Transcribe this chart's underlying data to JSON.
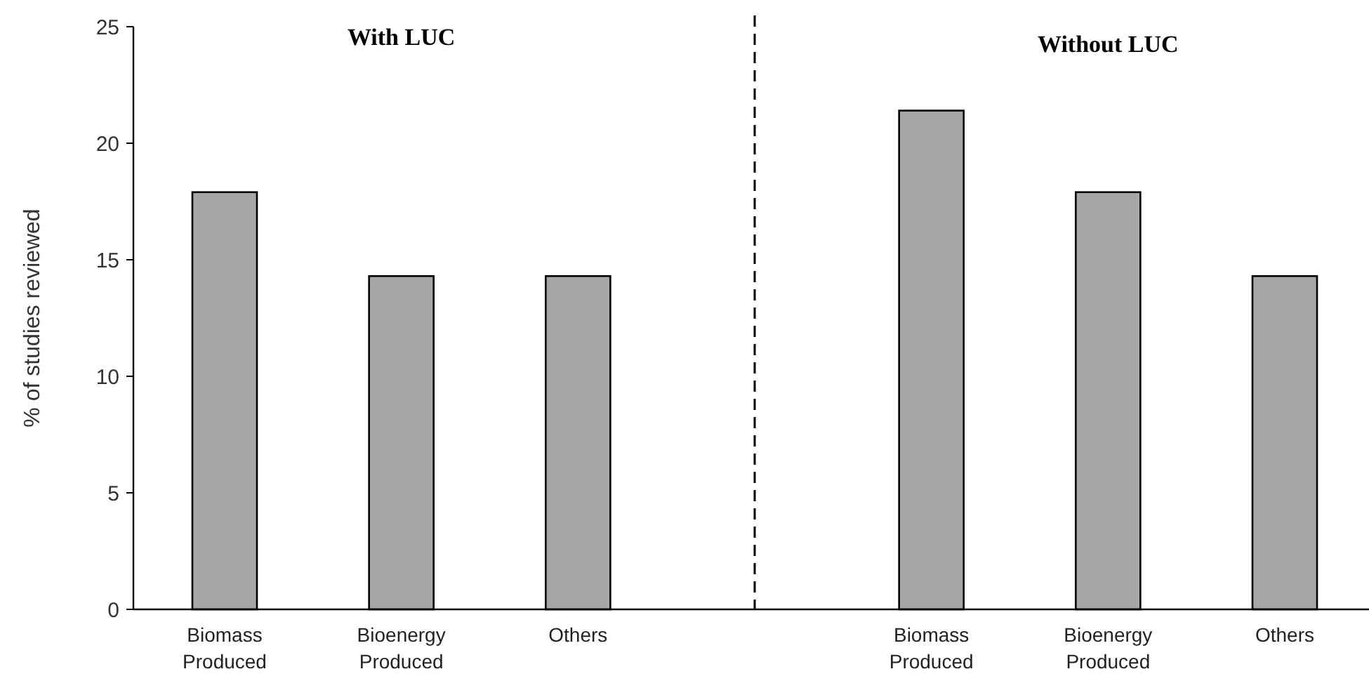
{
  "chart_data": {
    "type": "bar",
    "ylabel": "% of studies reviewed",
    "categories": [
      "Biomass Produced",
      "Bioenergy Produced",
      "Others",
      null,
      "Biomass Produced",
      "Bioenergy Produced",
      "Others"
    ],
    "values": [
      17.9,
      14.3,
      14.3,
      null,
      21.4,
      17.9,
      14.3
    ],
    "color": "#a6a6a6",
    "ylim": [
      0,
      25
    ],
    "yticks": [
      0,
      5,
      10,
      15,
      20,
      25
    ],
    "ref_lines": [
      {
        "axis": "x",
        "value": null,
        "line_style": "dashed",
        "color": "#000000"
      }
    ],
    "annotations": [
      "With LUC",
      "Without LUC"
    ]
  }
}
